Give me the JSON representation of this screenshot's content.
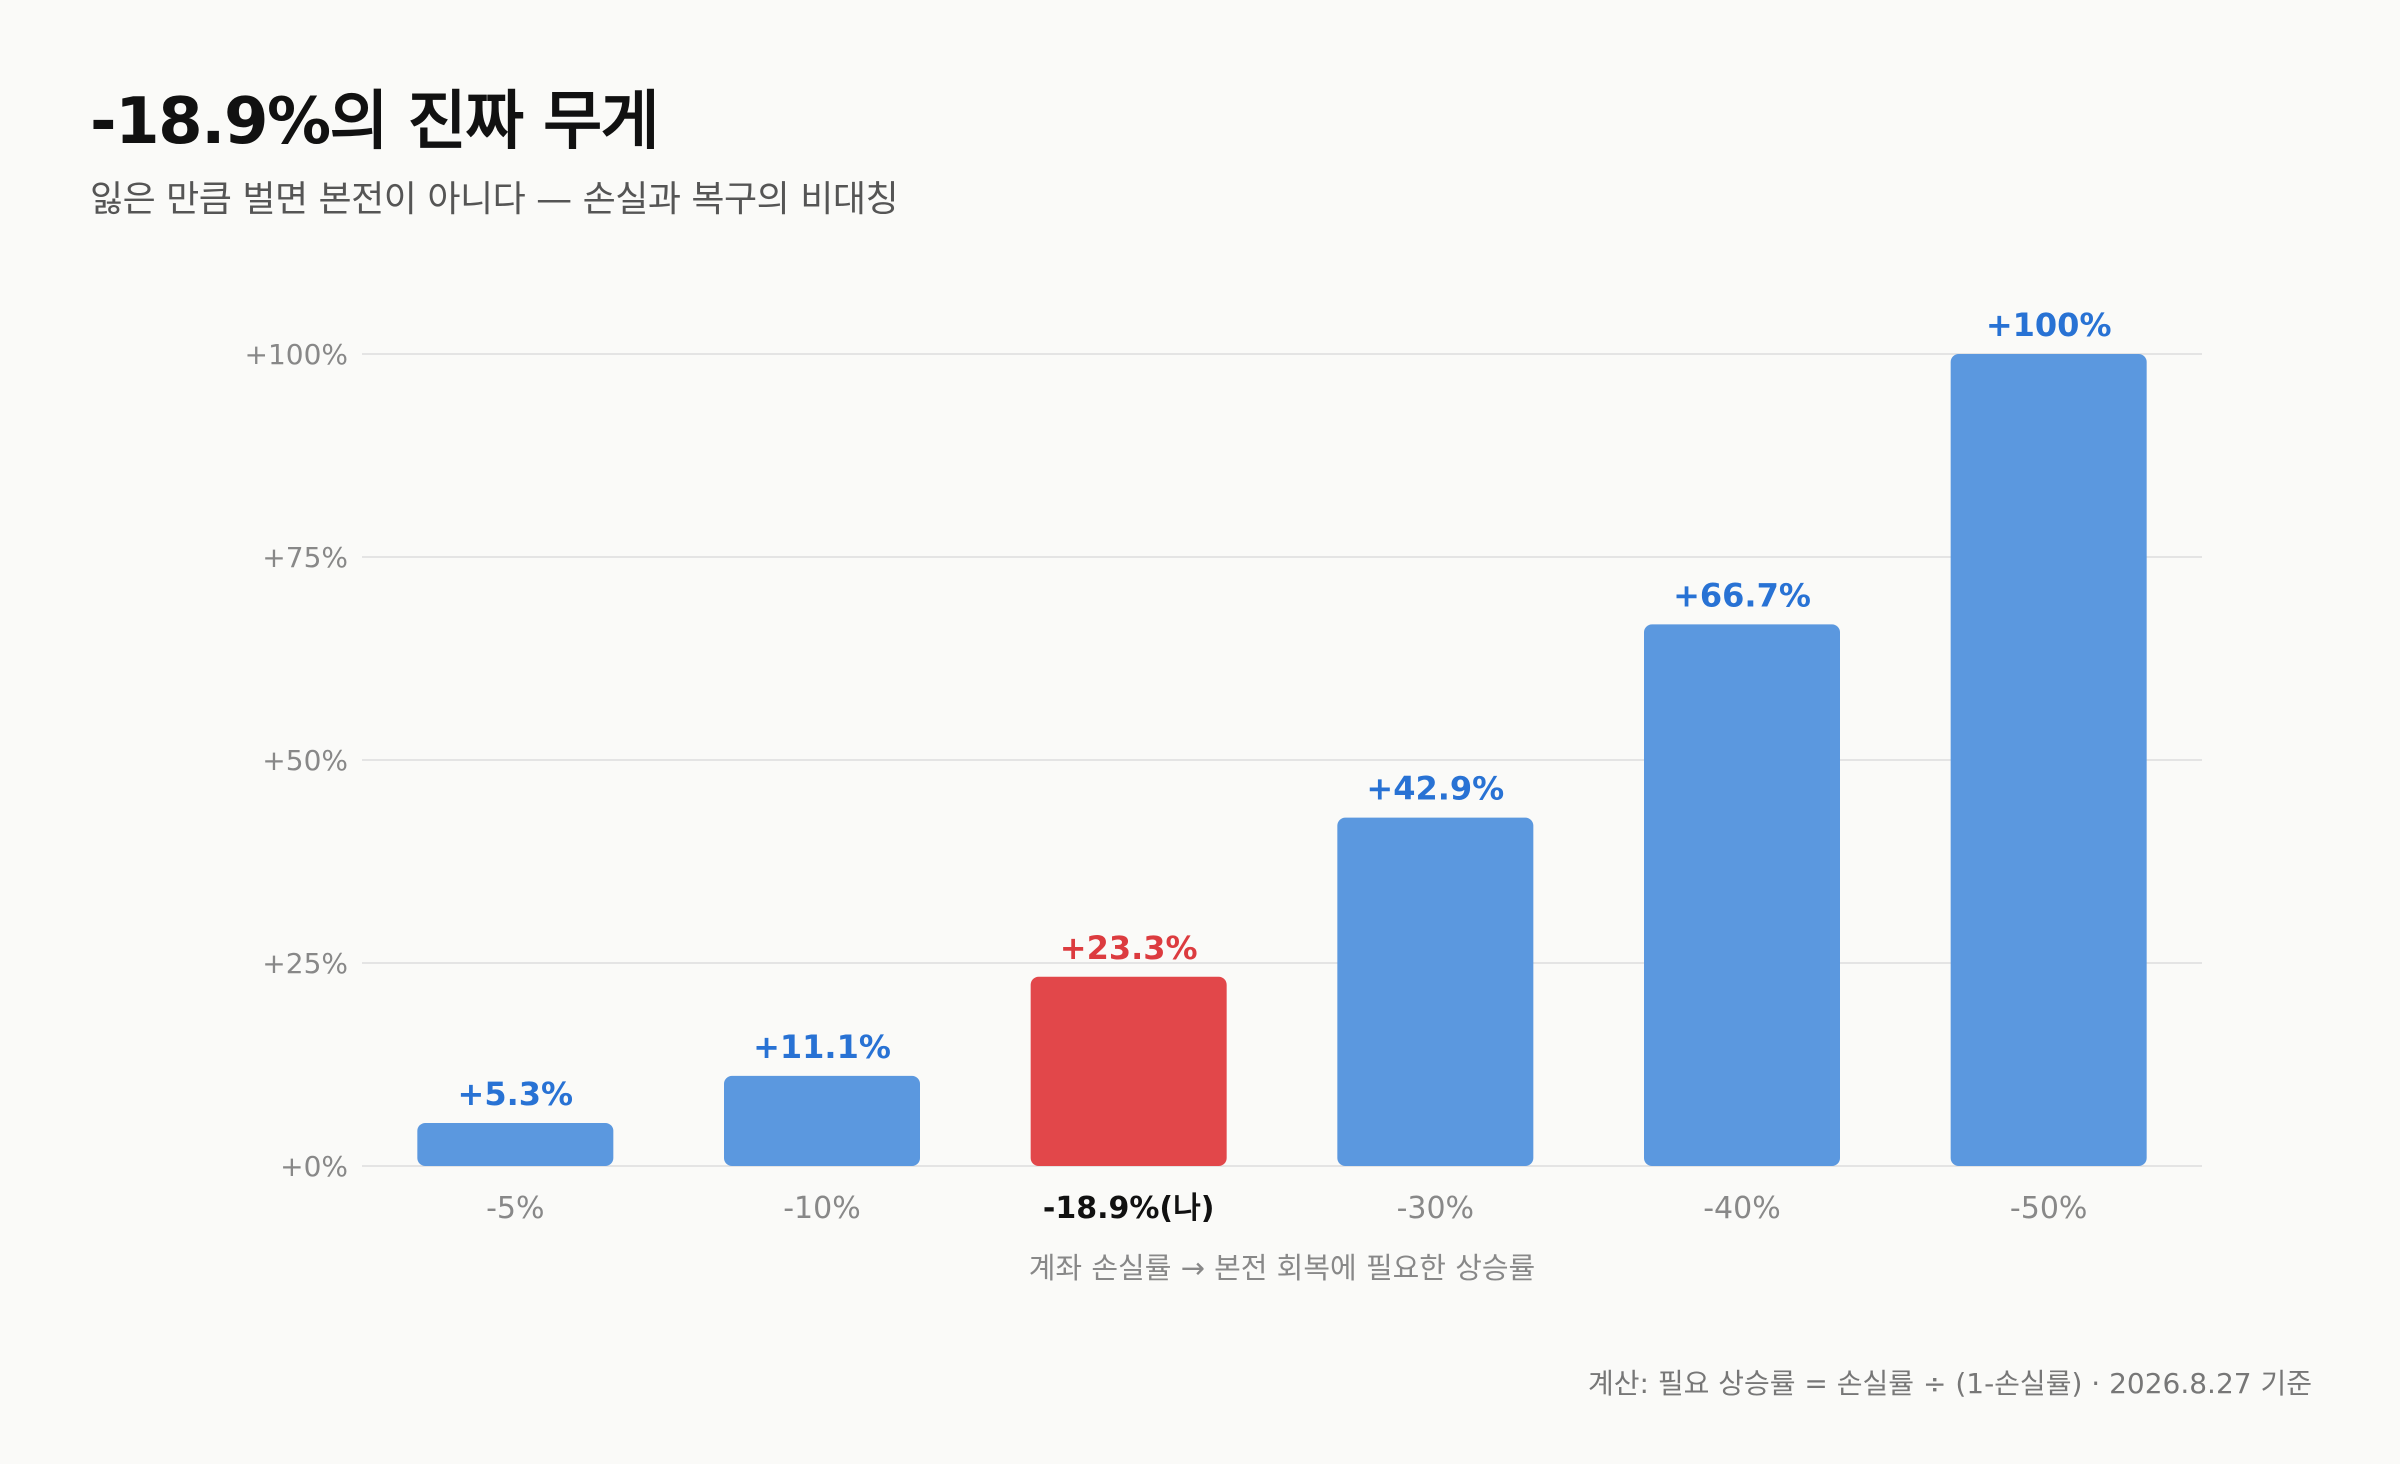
{
  "header": {
    "title": "-18.9%의 진짜 무게",
    "subtitle": "잃은 만큼 벌면 본전이 아니다 — 손실과 복구의 비대칭"
  },
  "footnote": "계산: 필요 상승률 = 손실률 ÷ (1-손실률) · 2026.8.27 기준",
  "colors": {
    "bar_default": "#5b98df",
    "bar_highlight": "#e2474a",
    "label_default": "#2872d4",
    "label_highlight": "#dc3b3f",
    "grid": "#e4e4e4",
    "tick": "#888888"
  },
  "chart_data": {
    "type": "bar",
    "categories": [
      "-5%",
      "-10%",
      "-18.9%(나)",
      "-30%",
      "-40%",
      "-50%"
    ],
    "values": [
      5.3,
      11.1,
      23.3,
      42.9,
      66.7,
      100
    ],
    "data_labels": [
      "+5.3%",
      "+11.1%",
      "+23.3%",
      "+42.9%",
      "+66.7%",
      "+100%"
    ],
    "highlight_index": 2,
    "xlabel": "계좌 손실률 → 본전 회복에 필요한 상승률",
    "ylabel": "",
    "ylim": [
      0,
      100
    ],
    "yticks": [
      0,
      25,
      50,
      75,
      100
    ],
    "ytick_labels": [
      "+0%",
      "+25%",
      "+50%",
      "+75%",
      "+100%"
    ],
    "grid": true
  }
}
